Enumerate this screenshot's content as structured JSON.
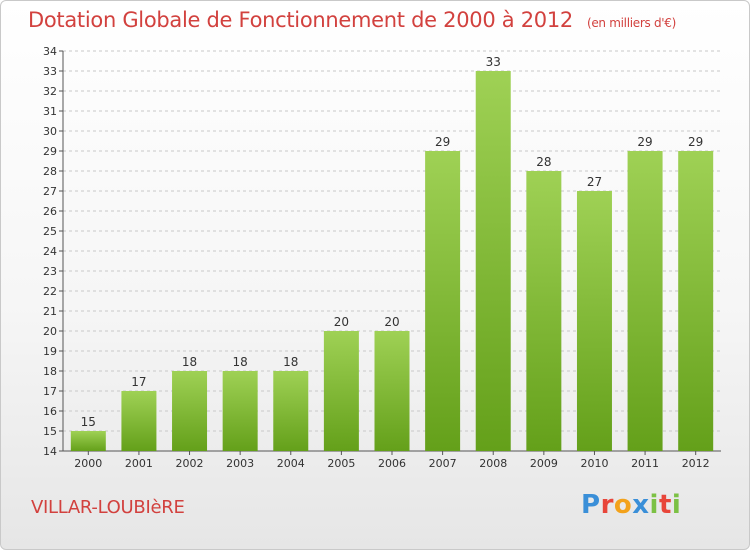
{
  "header": {
    "title": "Dotation Globale de Fonctionnement de 2000 à 2012",
    "subtitle": "(en milliers d'€)"
  },
  "footer": {
    "commune": "VILLAR-LOUBIèRE",
    "logo": [
      "P",
      "r",
      "o",
      "x",
      "i",
      "t",
      "i"
    ]
  },
  "colors": {
    "title": "#d2413e",
    "bar_light": "#9fd155",
    "bar_dark": "#64a01a",
    "grid": "#c8c8c8"
  },
  "chart_data": {
    "type": "bar",
    "title": "Dotation Globale de Fonctionnement de 2000 à 2012",
    "subtitle": "(en milliers d'€)",
    "categories": [
      "2000",
      "2001",
      "2002",
      "2003",
      "2004",
      "2005",
      "2006",
      "2007",
      "2008",
      "2009",
      "2010",
      "2011",
      "2012"
    ],
    "values": [
      15,
      17,
      18,
      18,
      18,
      20,
      20,
      29,
      33,
      28,
      27,
      29,
      29
    ],
    "ylim": [
      14,
      34
    ],
    "yticks": [
      14,
      15,
      16,
      17,
      18,
      19,
      20,
      21,
      22,
      23,
      24,
      25,
      26,
      27,
      28,
      29,
      30,
      31,
      32,
      33,
      34
    ],
    "xlabel": "",
    "ylabel": "",
    "grid": true,
    "data_labels": true
  }
}
